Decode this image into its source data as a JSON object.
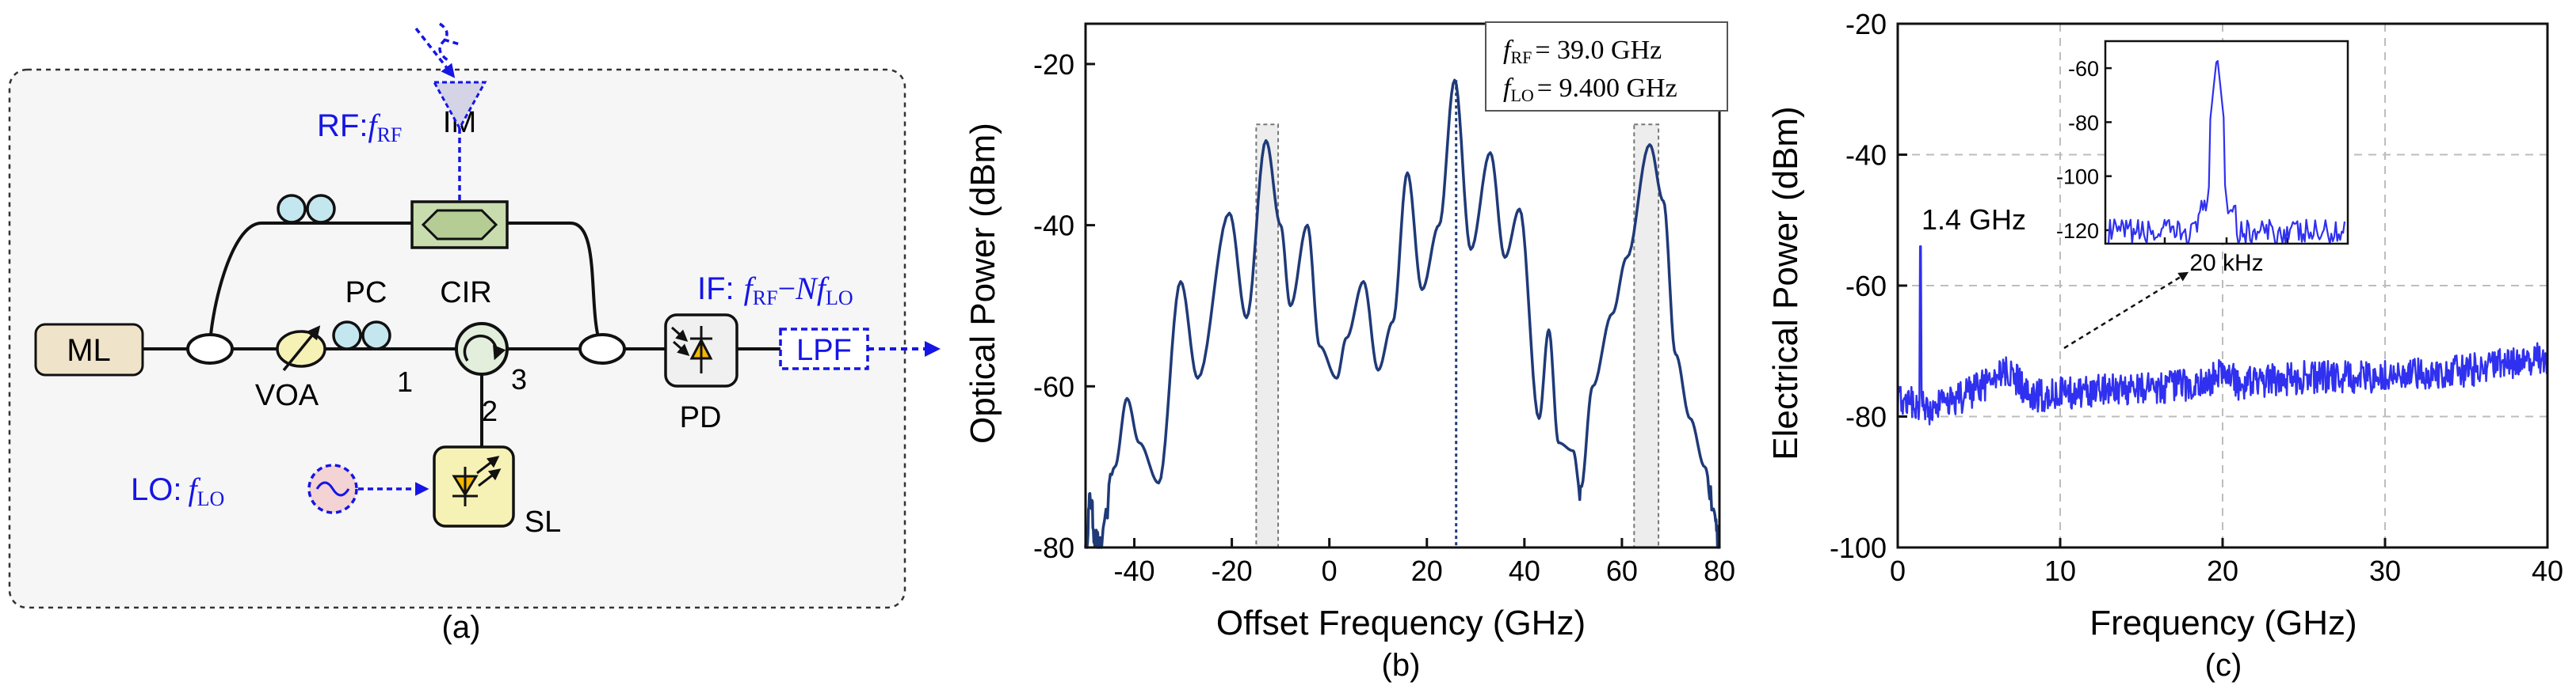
{
  "colors": {
    "ink": "#111111",
    "blue": "#1515e6",
    "trace": "#1f3a78",
    "electrical": "#3030f0",
    "im_fill": "#c9dcae",
    "ml_fill": "#efe3c9",
    "sl_fill": "#f6f2b5",
    "pd_triangle": "#f5b800",
    "lo_fill": "#f3d3d3",
    "panel_bg": "#f6f6f6",
    "grid": "#bdbdbd",
    "highlight": "#e6e6e6"
  },
  "panel_a": {
    "caption": "(a)",
    "rf_label": "RF:",
    "rf_var_f": "f",
    "rf_var_sub": "RF",
    "im_label": "IM",
    "pc_top_label": "",
    "pc_label": "PC",
    "cir_label": "CIR",
    "ml_label": "ML",
    "voa_label": "VOA",
    "port1": "1",
    "port2": "2",
    "port3": "3",
    "pd_label": "PD",
    "sl_label": "SL",
    "lpf_label": "LPF",
    "if_label": "IF:",
    "if_f1": "f",
    "if_sub1": "RF",
    "if_minus": "−",
    "if_N": "N",
    "if_f2": "f",
    "if_sub2": "LO",
    "lo_label": "LO:",
    "lo_var_f": "f",
    "lo_var_sub": "LO"
  },
  "panel_b": {
    "caption": "(b)",
    "legend": {
      "line1_f": "f",
      "line1_sub": "RF",
      "line1_value": "= 39.0 GHz",
      "line2_f": "f",
      "line2_sub": "LO",
      "line2_value": "= 9.400 GHz"
    },
    "chart_data": {
      "type": "line",
      "title": "",
      "xlabel": "Offset Frequency (GHz)",
      "ylabel": "Optical Power (dBm)",
      "xlim": [
        -50,
        80
      ],
      "ylim": [
        -80,
        -15
      ],
      "xticks": [
        -40,
        -20,
        0,
        20,
        40,
        60,
        80
      ],
      "yticks": [
        -80,
        -60,
        -40,
        -20
      ],
      "marker_line_x": 26,
      "highlight_regions": [
        [
          -15,
          -10.5
        ],
        [
          62.5,
          67.5
        ]
      ],
      "peaks": [
        {
          "x": -50,
          "y": -80
        },
        {
          "x": -49,
          "y": -74
        },
        {
          "x": -48,
          "y": -79
        },
        {
          "x": -47,
          "y": -80
        },
        {
          "x": -44,
          "y": -70
        },
        {
          "x": -41.5,
          "y": -61.5
        },
        {
          "x": -39,
          "y": -67
        },
        {
          "x": -35,
          "y": -72
        },
        {
          "x": -30.5,
          "y": -47
        },
        {
          "x": -27,
          "y": -59
        },
        {
          "x": -20.5,
          "y": -38.5
        },
        {
          "x": -17,
          "y": -51.5
        },
        {
          "x": -13,
          "y": -29.5
        },
        {
          "x": -10,
          "y": -40
        },
        {
          "x": -8,
          "y": -50
        },
        {
          "x": -4.5,
          "y": -40
        },
        {
          "x": -2,
          "y": -55
        },
        {
          "x": 1.5,
          "y": -59
        },
        {
          "x": 3.5,
          "y": -54
        },
        {
          "x": 7,
          "y": -47
        },
        {
          "x": 10,
          "y": -58
        },
        {
          "x": 13,
          "y": -52
        },
        {
          "x": 16,
          "y": -33.5
        },
        {
          "x": 19,
          "y": -48
        },
        {
          "x": 22.5,
          "y": -40
        },
        {
          "x": 25.7,
          "y": -22
        },
        {
          "x": 29,
          "y": -43
        },
        {
          "x": 33,
          "y": -31
        },
        {
          "x": 36,
          "y": -44
        },
        {
          "x": 39,
          "y": -38
        },
        {
          "x": 43,
          "y": -64
        },
        {
          "x": 45,
          "y": -53
        },
        {
          "x": 47,
          "y": -67
        },
        {
          "x": 50,
          "y": -68
        },
        {
          "x": 51.5,
          "y": -73
        },
        {
          "x": 54,
          "y": -60
        },
        {
          "x": 58,
          "y": -51
        },
        {
          "x": 61,
          "y": -44
        },
        {
          "x": 65.7,
          "y": -30
        },
        {
          "x": 68.5,
          "y": -37
        },
        {
          "x": 71,
          "y": -56
        },
        {
          "x": 74,
          "y": -64
        },
        {
          "x": 77,
          "y": -70
        },
        {
          "x": 79,
          "y": -76
        },
        {
          "x": 80,
          "y": -80
        }
      ]
    }
  },
  "panel_c": {
    "caption": "(c)",
    "spike_label": "1.4 GHz",
    "chart_data": {
      "type": "line",
      "title": "",
      "xlabel": "Frequency (GHz)",
      "ylabel": "Electrical Power (dBm)",
      "xlim": [
        0,
        40
      ],
      "ylim": [
        -100,
        -20
      ],
      "xticks": [
        0,
        10,
        20,
        30,
        40
      ],
      "yticks": [
        -100,
        -80,
        -60,
        -40,
        -20
      ],
      "grid": true,
      "spikes": [
        {
          "x": 1.4,
          "y": -54
        },
        {
          "x": 29,
          "y": -72
        }
      ],
      "baseline": [
        {
          "x": 0,
          "y": -77
        },
        {
          "x": 2,
          "y": -79
        },
        {
          "x": 4,
          "y": -77
        },
        {
          "x": 7,
          "y": -73
        },
        {
          "x": 8,
          "y": -77
        },
        {
          "x": 12,
          "y": -76
        },
        {
          "x": 16,
          "y": -75.5
        },
        {
          "x": 19,
          "y": -75
        },
        {
          "x": 20,
          "y": -73
        },
        {
          "x": 21,
          "y": -75
        },
        {
          "x": 25,
          "y": -74
        },
        {
          "x": 30,
          "y": -74
        },
        {
          "x": 35,
          "y": -73
        },
        {
          "x": 40,
          "y": -71
        }
      ],
      "inset": {
        "type": "line",
        "xlabel": "20 kHz",
        "ylim": [
          -125,
          -50
        ],
        "yticks": [
          -120,
          -100,
          -80,
          -60
        ],
        "peak_y": -55
      }
    }
  }
}
